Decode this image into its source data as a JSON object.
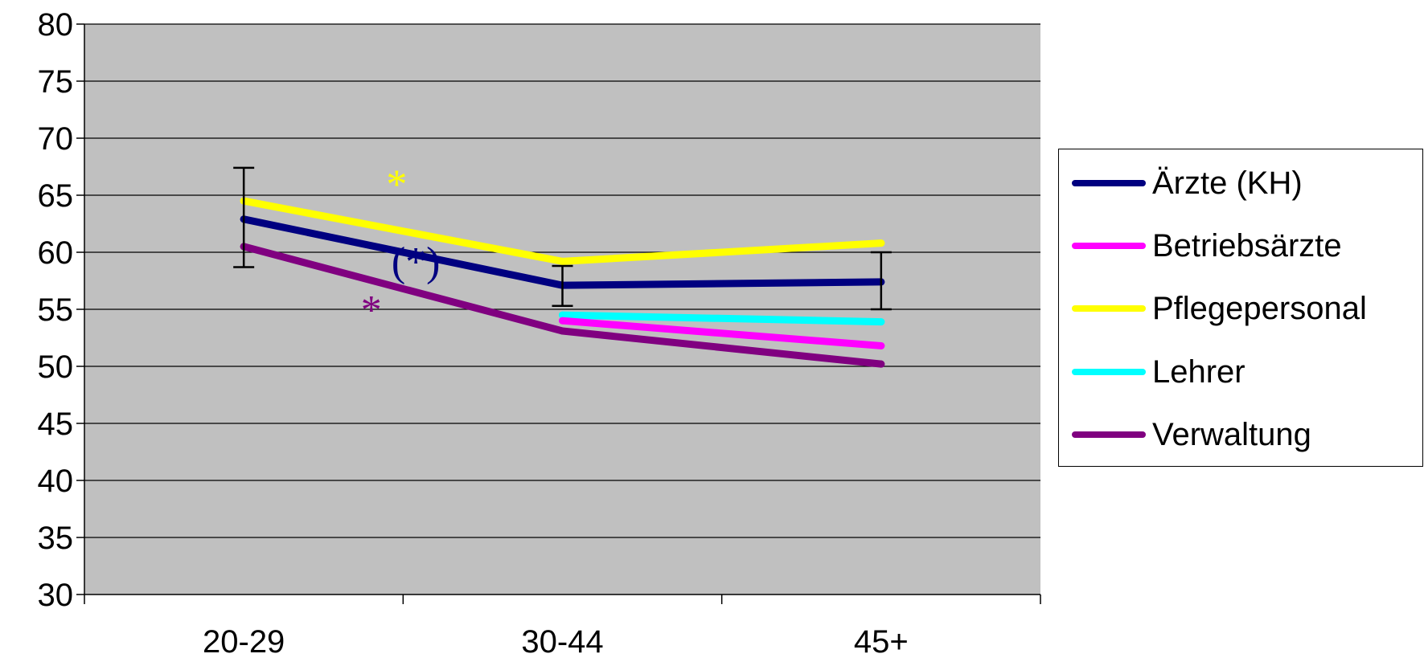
{
  "chart_data": {
    "type": "line",
    "categories": [
      "20-29",
      "30-44",
      "45+"
    ],
    "ylim": [
      30,
      80
    ],
    "yticks": [
      "30",
      "35",
      "40",
      "45",
      "50",
      "55",
      "60",
      "65",
      "70",
      "75",
      "80"
    ],
    "grid": true,
    "plot_background": "#c0c0c0",
    "legend_position": "right",
    "series": [
      {
        "name": "Ärzte (KH)",
        "color": "#000080",
        "values": [
          62.9,
          57.1,
          57.4
        ],
        "error_bars": [
          [
            58.7,
            67.4
          ],
          [
            55.3,
            58.8
          ],
          [
            55.0,
            60.0
          ]
        ]
      },
      {
        "name": "Betriebsärzte",
        "color": "#ff00ff",
        "values": [
          null,
          54.0,
          51.8
        ]
      },
      {
        "name": "Pflegepersonal",
        "color": "#ffff00",
        "values": [
          64.5,
          59.2,
          60.8
        ]
      },
      {
        "name": "Lehrer",
        "color": "#00ffff",
        "values": [
          null,
          54.5,
          53.9
        ]
      },
      {
        "name": "Verwaltung",
        "color": "#800080",
        "values": [
          60.5,
          53.1,
          50.2
        ]
      }
    ],
    "annotations": [
      {
        "text": "*",
        "color": "#ffff00",
        "series": "Pflegepersonal"
      },
      {
        "text": "(*)",
        "color": "#000080",
        "series": "Ärzte (KH)"
      },
      {
        "text": "*",
        "color": "#800080",
        "series": "Verwaltung"
      }
    ]
  }
}
